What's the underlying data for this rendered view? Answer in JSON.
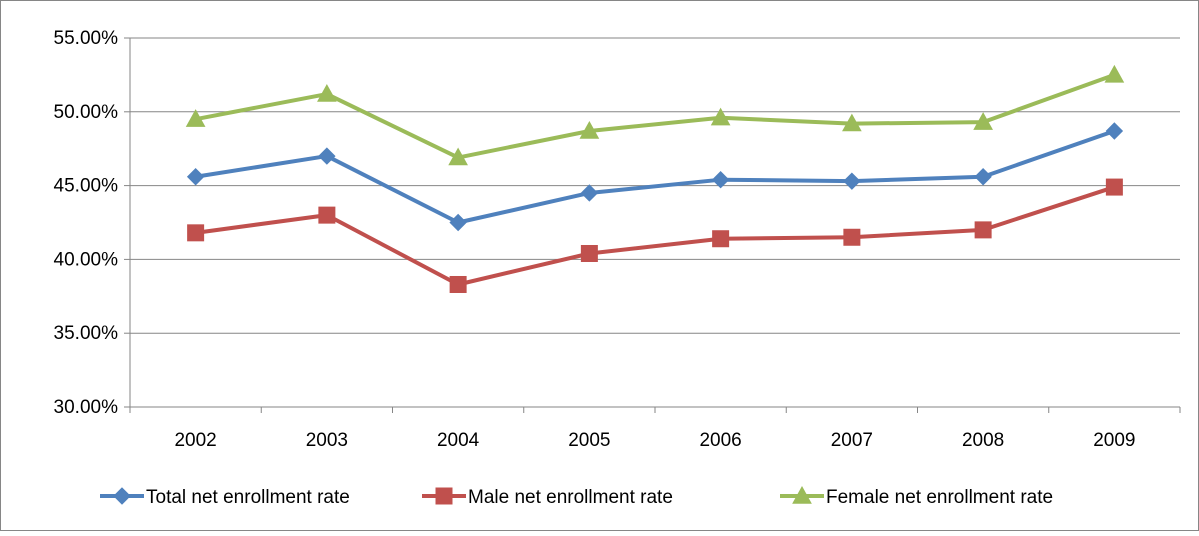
{
  "chart_data": {
    "type": "line",
    "title": "",
    "xlabel": "",
    "ylabel": "",
    "categories": [
      "2002",
      "2003",
      "2004",
      "2005",
      "2006",
      "2007",
      "2008",
      "2009"
    ],
    "y_tick_labels": [
      "30.00%",
      "35.00%",
      "40.00%",
      "45.00%",
      "50.00%",
      "55.00%"
    ],
    "ylim": [
      30,
      55
    ],
    "y_tick_values": [
      30,
      35,
      40,
      45,
      50,
      55
    ],
    "grid": true,
    "legend_position": "bottom",
    "series": [
      {
        "name": "Total net enrollment rate",
        "color": "#4F81BD",
        "marker": "diamond",
        "values": [
          45.6,
          47.0,
          42.5,
          44.5,
          45.4,
          45.3,
          45.6,
          48.7
        ]
      },
      {
        "name": "Male net enrollment rate",
        "color": "#C0504D",
        "marker": "square",
        "values": [
          41.8,
          43.0,
          38.3,
          40.4,
          41.4,
          41.5,
          42.0,
          44.9
        ]
      },
      {
        "name": "Female net enrollment rate",
        "color": "#9BBB59",
        "marker": "triangle",
        "values": [
          49.5,
          51.2,
          46.9,
          48.7,
          49.6,
          49.2,
          49.3,
          52.5
        ]
      }
    ]
  }
}
